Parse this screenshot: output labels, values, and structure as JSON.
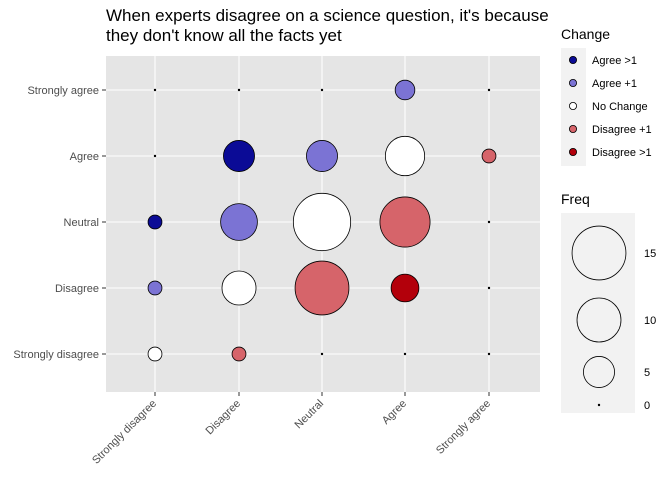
{
  "chart_data": {
    "type": "scatter",
    "title": [
      "When experts disagree on a science question, it's because",
      "they don't know all the facts yet"
    ],
    "x_categories": [
      "Strongly disagree",
      "Disagree",
      "Neutral",
      "Agree",
      "Strongly agree"
    ],
    "y_categories": [
      "Strongly disagree",
      "Disagree",
      "Neutral",
      "Agree",
      "Strongly agree"
    ],
    "xlabel": "",
    "ylabel": "",
    "grid": true,
    "size_legend": {
      "title": "Freq",
      "values": [
        15,
        10,
        5,
        0
      ],
      "max": 18
    },
    "color_legend": {
      "title": "Change",
      "items": [
        {
          "label": "Agree >1",
          "color": "#0b0b96"
        },
        {
          "label": "Agree +1",
          "color": "#7b73d4"
        },
        {
          "label": "No Change",
          "color": "#ffffff"
        },
        {
          "label": "Disagree +1",
          "color": "#d6646a"
        },
        {
          "label": "Disagree >1",
          "color": "#b3000b"
        }
      ]
    },
    "points": [
      {
        "x": "Strongly disagree",
        "y": "Strongly disagree",
        "freq": 1,
        "change": "No Change"
      },
      {
        "x": "Strongly disagree",
        "y": "Disagree",
        "freq": 1,
        "change": "Agree +1"
      },
      {
        "x": "Strongly disagree",
        "y": "Neutral",
        "freq": 1,
        "change": "Agree >1"
      },
      {
        "x": "Strongly disagree",
        "y": "Agree",
        "freq": 0,
        "change": "Agree >1"
      },
      {
        "x": "Strongly disagree",
        "y": "Strongly agree",
        "freq": 0,
        "change": "Agree >1"
      },
      {
        "x": "Disagree",
        "y": "Strongly disagree",
        "freq": 1,
        "change": "Disagree +1"
      },
      {
        "x": "Disagree",
        "y": "Disagree",
        "freq": 6,
        "change": "No Change"
      },
      {
        "x": "Disagree",
        "y": "Neutral",
        "freq": 7,
        "change": "Agree +1"
      },
      {
        "x": "Disagree",
        "y": "Agree",
        "freq": 5,
        "change": "Agree >1"
      },
      {
        "x": "Disagree",
        "y": "Strongly agree",
        "freq": 0,
        "change": "Agree >1"
      },
      {
        "x": "Neutral",
        "y": "Strongly disagree",
        "freq": 0,
        "change": "Disagree >1"
      },
      {
        "x": "Neutral",
        "y": "Disagree",
        "freq": 15,
        "change": "Disagree +1"
      },
      {
        "x": "Neutral",
        "y": "Neutral",
        "freq": 17,
        "change": "No Change"
      },
      {
        "x": "Neutral",
        "y": "Agree",
        "freq": 5,
        "change": "Agree +1"
      },
      {
        "x": "Neutral",
        "y": "Strongly agree",
        "freq": 0,
        "change": "Agree >1"
      },
      {
        "x": "Agree",
        "y": "Strongly disagree",
        "freq": 0,
        "change": "Disagree >1"
      },
      {
        "x": "Agree",
        "y": "Disagree",
        "freq": 4,
        "change": "Disagree >1"
      },
      {
        "x": "Agree",
        "y": "Neutral",
        "freq": 13,
        "change": "Disagree +1"
      },
      {
        "x": "Agree",
        "y": "Agree",
        "freq": 8,
        "change": "No Change"
      },
      {
        "x": "Agree",
        "y": "Strongly agree",
        "freq": 2,
        "change": "Agree +1"
      },
      {
        "x": "Strongly agree",
        "y": "Strongly disagree",
        "freq": 0,
        "change": "Disagree >1"
      },
      {
        "x": "Strongly agree",
        "y": "Disagree",
        "freq": 0,
        "change": "Disagree >1"
      },
      {
        "x": "Strongly agree",
        "y": "Neutral",
        "freq": 0,
        "change": "Disagree >1"
      },
      {
        "x": "Strongly agree",
        "y": "Agree",
        "freq": 1,
        "change": "Disagree +1"
      },
      {
        "x": "Strongly agree",
        "y": "Strongly agree",
        "freq": 0,
        "change": "No Change"
      }
    ]
  }
}
